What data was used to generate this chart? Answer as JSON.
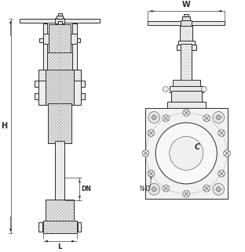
{
  "bg_color": "#ffffff",
  "line_color": "#2a2a2a",
  "dim_color": "#2a2a2a",
  "hatch_color": "#666666",
  "label_H": "H",
  "label_W": "W",
  "label_L": "L",
  "label_DN": "DN",
  "label_C": "C",
  "label_ND": "N-D",
  "figsize": [
    3.12,
    3.22
  ],
  "dpi": 100,
  "lw_main": 0.7,
  "lw_thin": 0.35,
  "lw_dim": 0.45,
  "lw_hatch": 0.3
}
